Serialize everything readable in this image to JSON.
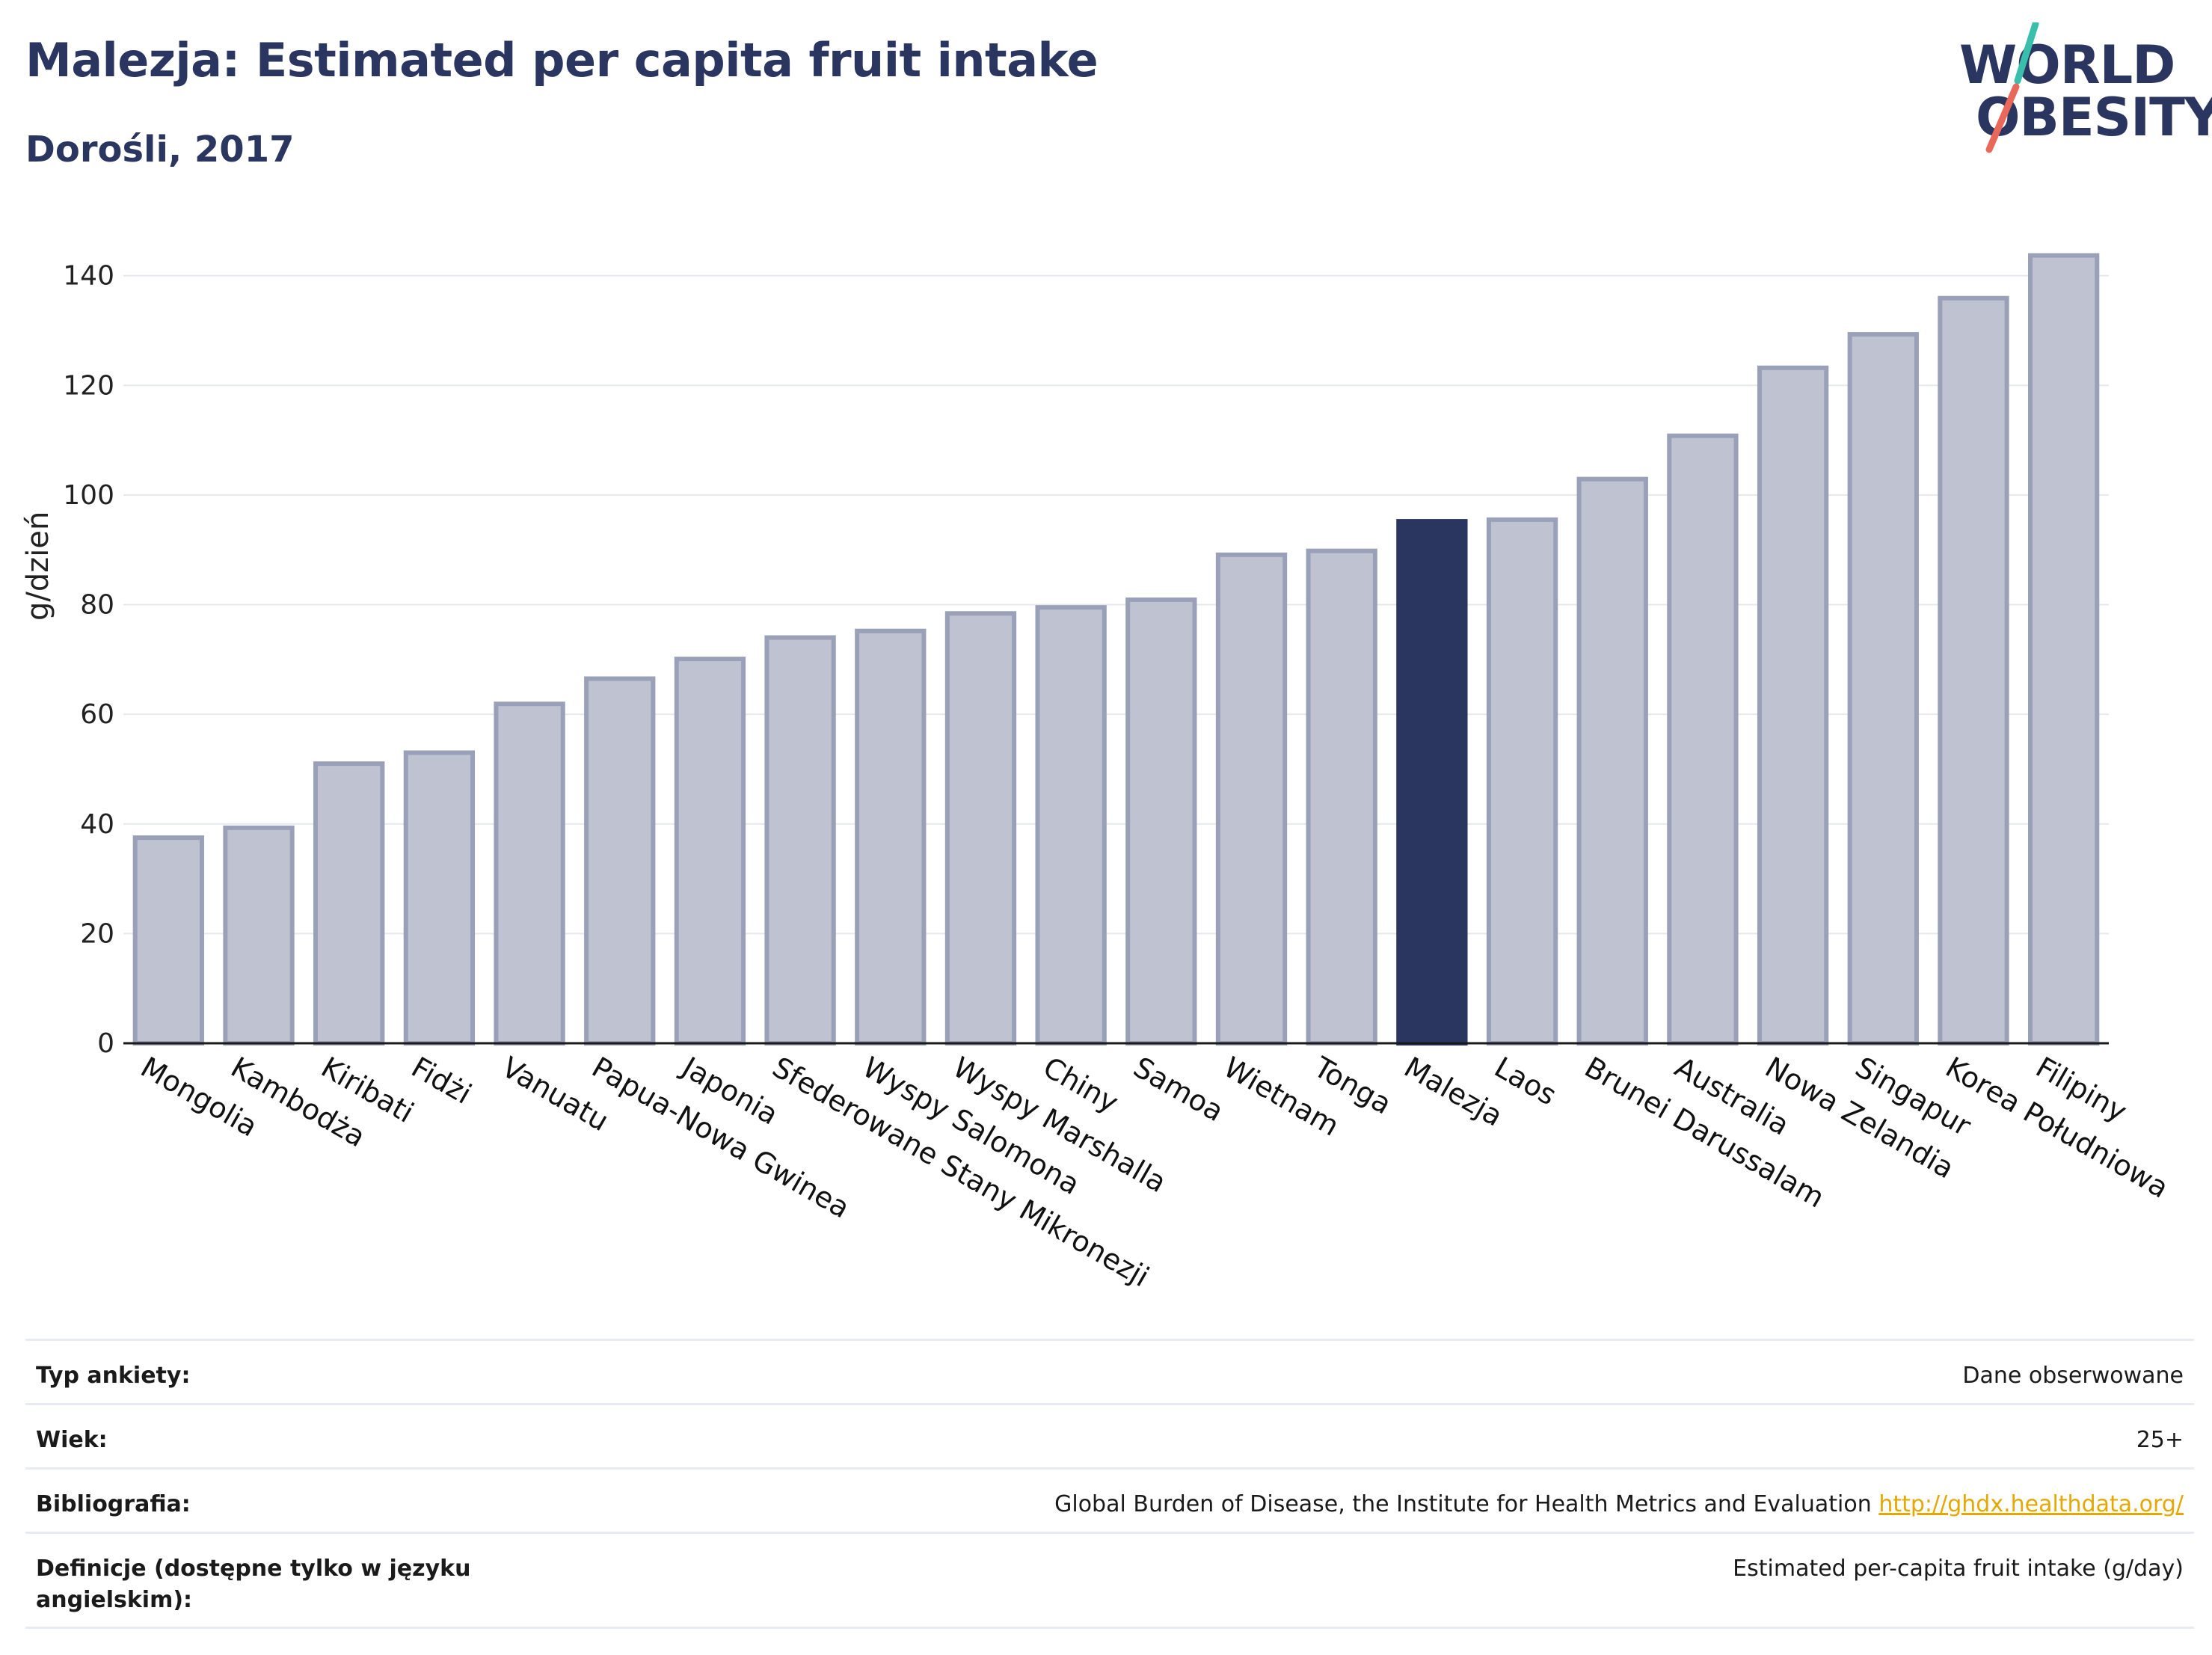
{
  "header": {
    "title": "Malezja: Estimated per capita fruit intake",
    "subtitle": "Dorośli, 2017"
  },
  "logo": {
    "line1": "WORLD",
    "line2": "OBESITY",
    "colors": {
      "text": "#2a3560",
      "stripe_top": "#3bbfad",
      "stripe_bottom": "#e8685a"
    }
  },
  "chart_data": {
    "type": "bar",
    "title": "Malezja: Estimated per capita fruit intake",
    "subtitle": "Dorośli, 2017",
    "xlabel": "",
    "ylabel": "g/dzień",
    "ylim": [
      0,
      148
    ],
    "yticks": [
      0,
      20,
      40,
      60,
      80,
      100,
      120,
      140
    ],
    "grid": true,
    "highlight": "Malezja",
    "colors": {
      "bar": "#bfc3d1",
      "bar_border": "#9aa0b8",
      "highlight": "#2a3560"
    },
    "categories": [
      "Mongolia",
      "Kambodża",
      "Kiribati",
      "Fidżi",
      "Vanuatu",
      "Papua-Nowa Gwinea",
      "Japonia",
      "Sfederowane Stany Mikronezji",
      "Wyspy Salomona",
      "Wyspy Marshalla",
      "Chiny",
      "Samoa",
      "Wietnam",
      "Tonga",
      "Malezja",
      "Laos",
      "Brunei Darussalam",
      "Australia",
      "Nowa Zelandia",
      "Singapur",
      "Korea Południowa",
      "Filipiny"
    ],
    "values": [
      37.5,
      39.3,
      51,
      53,
      61.9,
      66.5,
      70.1,
      74,
      75.2,
      78.4,
      79.5,
      80.9,
      89.1,
      89.8,
      95.2,
      95.5,
      102.9,
      110.8,
      123.2,
      129.3,
      135.9,
      143.7
    ]
  },
  "info": [
    {
      "label": "Typ ankiety:",
      "value": "Dane obserwowane"
    },
    {
      "label": "Wiek:",
      "value": "25+"
    },
    {
      "label": "Bibliografia:",
      "value": "Global Burden of Disease, the Institute for Health Metrics and Evaluation",
      "link": "http://ghdx.healthdata.org/"
    },
    {
      "label": "Definicje (dostępne tylko w języku angielskim):",
      "value": "Estimated per-capita fruit intake (g/day)"
    }
  ]
}
